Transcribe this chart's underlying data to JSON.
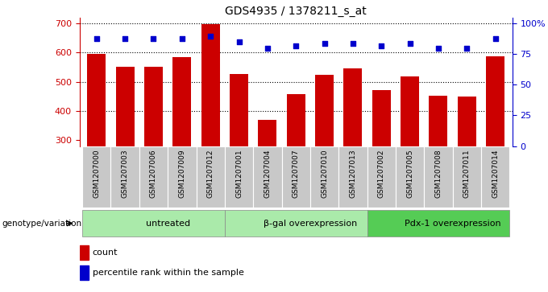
{
  "title": "GDS4935 / 1378211_s_at",
  "samples": [
    "GSM1207000",
    "GSM1207003",
    "GSM1207006",
    "GSM1207009",
    "GSM1207012",
    "GSM1207001",
    "GSM1207004",
    "GSM1207007",
    "GSM1207010",
    "GSM1207013",
    "GSM1207002",
    "GSM1207005",
    "GSM1207008",
    "GSM1207011",
    "GSM1207014"
  ],
  "counts": [
    595,
    551,
    551,
    585,
    697,
    527,
    370,
    458,
    523,
    545,
    472,
    519,
    452,
    449,
    588
  ],
  "percentiles": [
    88,
    88,
    88,
    88,
    90,
    85,
    80,
    82,
    84,
    84,
    82,
    84,
    80,
    80,
    88
  ],
  "groups": [
    {
      "label": "untreated",
      "start": 0,
      "end": 5
    },
    {
      "label": "β-gal overexpression",
      "start": 5,
      "end": 10
    },
    {
      "label": "Pdx-1 overexpression",
      "start": 10,
      "end": 15
    }
  ],
  "bar_color": "#cc0000",
  "dot_color": "#0000cc",
  "group_bg_light": "#aaeaaa",
  "group_bg_dark": "#55cc55",
  "sample_bg_color": "#c8c8c8",
  "ylim_left": [
    280,
    720
  ],
  "ylim_right": [
    0,
    105
  ],
  "yticks_left": [
    300,
    400,
    500,
    600,
    700
  ],
  "yticks_right": [
    0,
    25,
    50,
    75,
    100
  ],
  "grid_values": [
    400,
    500,
    600,
    700
  ],
  "legend_count_label": "count",
  "legend_pct_label": "percentile rank within the sample",
  "genotype_label": "genotype/variation"
}
